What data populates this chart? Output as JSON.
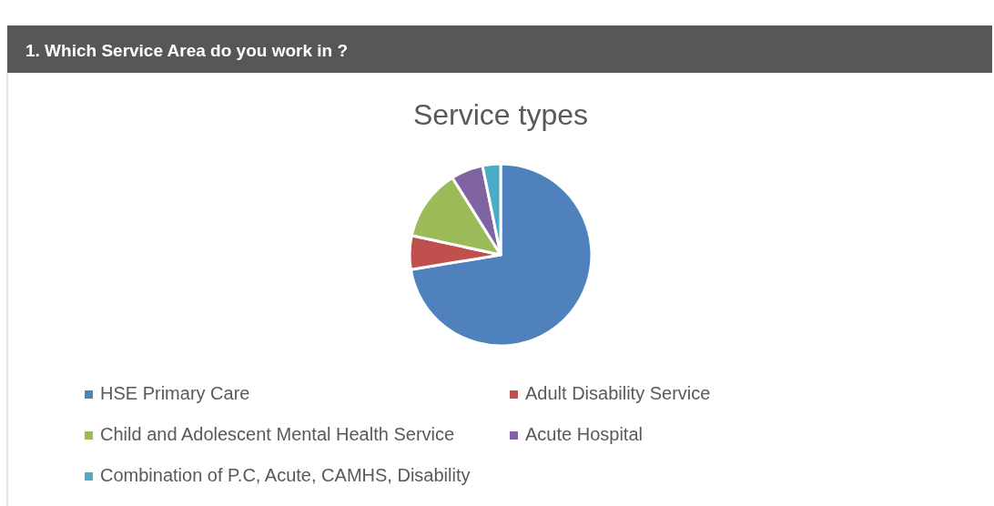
{
  "chart_data": {
    "type": "pie",
    "title": "1. Which Service Area do you work in ?",
    "subtitle": "Service types",
    "categories": [
      "HSE Primary Care",
      "Adult Disability Service",
      "Child and Adolescent Mental Health Service",
      "Acute Hospital",
      "Combination of P.C, Acute, CAMHS, Disability"
    ],
    "values": [
      72.4,
      6,
      12.7,
      5.7,
      3.2
    ],
    "colors": [
      "#4f81bd",
      "#c0504d",
      "#9bbb59",
      "#8064a2",
      "#4bacc6"
    ],
    "legend": "bottom"
  }
}
